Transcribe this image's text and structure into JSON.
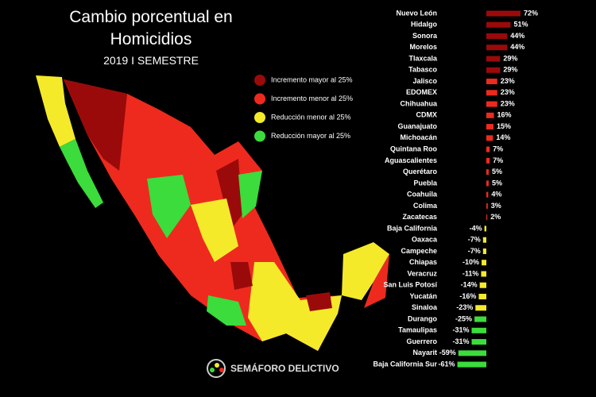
{
  "title": "Cambio porcentual en Homicidios",
  "subtitle": "2019 I SEMESTRE",
  "legend": [
    {
      "label": "Incremento mayor al 25%",
      "color": "#9b0a0a"
    },
    {
      "label": "Incremento menor al 25%",
      "color": "#ee2a1e"
    },
    {
      "label": "Reducción menor al 25%",
      "color": "#f4ea2a"
    },
    {
      "label": "Reducción mayor al 25%",
      "color": "#3bdc3b"
    }
  ],
  "logo": "SEMÁFORO DELICTIVO",
  "chart_data": {
    "type": "bar",
    "orientation": "horizontal",
    "categories": [
      "Nuevo León",
      "Hidalgo",
      "Sonora",
      "Morelos",
      "Tlaxcala",
      "Tabasco",
      "Jalisco",
      "EDOMEX",
      "Chihuahua",
      "CDMX",
      "Guanajuato",
      "Michoacán",
      "Quintana Roo",
      "Aguascalientes",
      "Querétaro",
      "Puebla",
      "Coahuila",
      "Colima",
      "Zacatecas",
      "Baja California",
      "Oaxaca",
      "Campeche",
      "Chiapas",
      "Veracruz",
      "San Luis Potosí",
      "Yucatán",
      "Sinaloa",
      "Durango",
      "Tamaulipas",
      "Guerrero",
      "Nayarit",
      "Baja California Sur"
    ],
    "values": [
      72,
      51,
      44,
      44,
      29,
      29,
      23,
      23,
      23,
      16,
      15,
      14,
      7,
      7,
      5,
      5,
      4,
      3,
      2,
      -4,
      -7,
      -7,
      -10,
      -11,
      -14,
      -16,
      -23,
      -25,
      -31,
      -31,
      -59,
      -61
    ],
    "value_labels": [
      "72%",
      "51%",
      "44%",
      "44%",
      "29%",
      "29%",
      "23%",
      "23%",
      "23%",
      "16%",
      "15%",
      "14%",
      "7%",
      "7%",
      "5%",
      "5%",
      "4%",
      "3%",
      "2%",
      "-4%",
      "-7%",
      "-7%",
      "-10%",
      "-11%",
      "-14%",
      "-16%",
      "-23%",
      "-25%",
      "-31%",
      "-31%",
      "-59%",
      "-61%"
    ],
    "colors": [
      "#9b0a0a",
      "#9b0a0a",
      "#9b0a0a",
      "#9b0a0a",
      "#9b0a0a",
      "#9b0a0a",
      "#ee2a1e",
      "#ee2a1e",
      "#ee2a1e",
      "#ee2a1e",
      "#ee2a1e",
      "#ee2a1e",
      "#ee2a1e",
      "#ee2a1e",
      "#ee2a1e",
      "#ee2a1e",
      "#ee2a1e",
      "#ee2a1e",
      "#ee2a1e",
      "#f4ea2a",
      "#f4ea2a",
      "#f4ea2a",
      "#f4ea2a",
      "#f4ea2a",
      "#f4ea2a",
      "#f4ea2a",
      "#f4ea2a",
      "#3bdc3b",
      "#3bdc3b",
      "#3bdc3b",
      "#3bdc3b",
      "#3bdc3b"
    ]
  }
}
